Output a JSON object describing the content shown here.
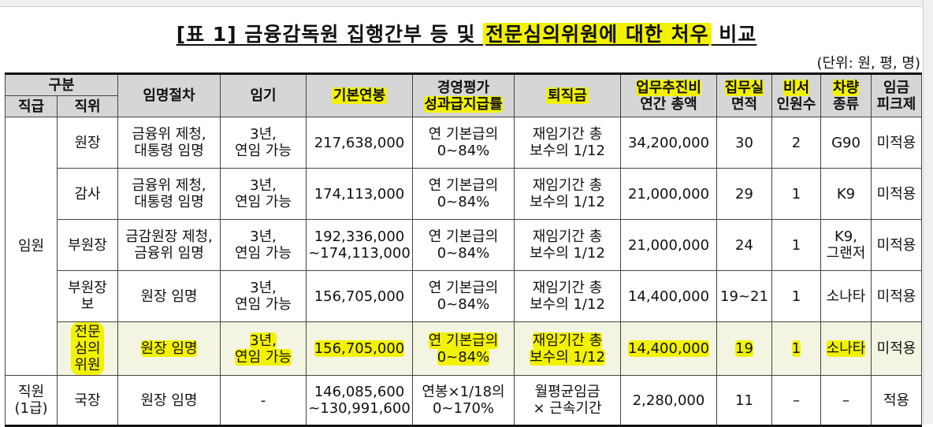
{
  "title": {
    "prefix": "[표 1] 금융감독원 집행간부 등 및 ",
    "highlight": "전문심의위원에 대한 처우",
    "suffix": " 비교"
  },
  "unit": "(단위: 원, 평, 명)",
  "headers": {
    "group": "구분",
    "rank": "직급",
    "position": "직위",
    "appointment": "임명절차",
    "term": "임기",
    "base_salary": "기본연봉",
    "bonus_line1": "경영평가",
    "bonus_line2": "성과급지급률",
    "retirement": "퇴직금",
    "business_line1": "업무추진비",
    "business_line2": "연간 총액",
    "office_line1": "집무실",
    "office_line2": "면적",
    "secretary_line1": "비서",
    "secretary_line2": "인원수",
    "vehicle_line1": "차량",
    "vehicle_line2": "종류",
    "peak_line1": "임금",
    "peak_line2": "피크제"
  },
  "groups": {
    "executive": "임원",
    "staff_line1": "직원",
    "staff_line2": "(1급)"
  },
  "rows": [
    {
      "position": [
        "원장"
      ],
      "appointment": [
        "금융위 제청,",
        "대통령 임명"
      ],
      "term": [
        "3년,",
        "연임 가능"
      ],
      "salary": [
        "217,638,000"
      ],
      "bonus": [
        "연 기본급의",
        "0~84%"
      ],
      "retirement": [
        "재임기간 총",
        "보수의 1/12"
      ],
      "business": "34,200,000",
      "office": "30",
      "secretary": "2",
      "vehicle": [
        "G90"
      ],
      "peak": "미적용"
    },
    {
      "position": [
        "감사"
      ],
      "appointment": [
        "금융위 제청,",
        "대통령 임명"
      ],
      "term": [
        "3년,",
        "연임 가능"
      ],
      "salary": [
        "174,113,000"
      ],
      "bonus": [
        "연 기본급의",
        "0~84%"
      ],
      "retirement": [
        "재임기간 총",
        "보수의 1/12"
      ],
      "business": "21,000,000",
      "office": "29",
      "secretary": "1",
      "vehicle": [
        "K9"
      ],
      "peak": "미적용"
    },
    {
      "position": [
        "부원장"
      ],
      "appointment": [
        "금감원장 제청,",
        "금융위 임명"
      ],
      "term": [
        "3년,",
        "연임 가능"
      ],
      "salary": [
        "192,336,000",
        "~174,113,000"
      ],
      "bonus": [
        "연 기본급의",
        "0~84%"
      ],
      "retirement": [
        "재임기간 총",
        "보수의 1/12"
      ],
      "business": "21,000,000",
      "office": "24",
      "secretary": "1",
      "vehicle": [
        "K9,",
        "그랜저"
      ],
      "peak": "미적용"
    },
    {
      "position": [
        "부원장",
        "보"
      ],
      "appointment": [
        "원장 임명"
      ],
      "term": [
        "3년,",
        "연임 가능"
      ],
      "salary": [
        "156,705,000"
      ],
      "bonus": [
        "연 기본급의",
        "0~84%"
      ],
      "retirement": [
        "재임기간 총",
        "보수의 1/12"
      ],
      "business": "14,400,000",
      "office": "19~21",
      "secretary": "1",
      "vehicle": [
        "소나타"
      ],
      "peak": "미적용"
    },
    {
      "position": [
        "전문",
        "심의",
        "위원"
      ],
      "appointment": [
        "원장 임명"
      ],
      "term": [
        "3년,",
        "연임 가능"
      ],
      "salary": [
        "156,705,000"
      ],
      "bonus": [
        "연 기본급의",
        "0~84%"
      ],
      "retirement": [
        "재임기간 총",
        "보수의 1/12"
      ],
      "business": "14,400,000",
      "office": "19",
      "secretary": "1",
      "vehicle": [
        "소나타"
      ],
      "peak": "미적용"
    },
    {
      "position": [
        "국장"
      ],
      "appointment": [
        "원장 임명"
      ],
      "term": [
        "-"
      ],
      "salary": [
        "146,085,600",
        "~130,991,600"
      ],
      "bonus": [
        "연봉×1/18의",
        "0~170%"
      ],
      "retirement": [
        "월평균임금",
        "× 근속기간"
      ],
      "business": "2,280,000",
      "office": "11",
      "secretary": "–",
      "vehicle": [
        "–"
      ],
      "peak": "적용"
    }
  ],
  "colors": {
    "highlight": "#f2f200",
    "header_bg": "#d6d6d6"
  }
}
